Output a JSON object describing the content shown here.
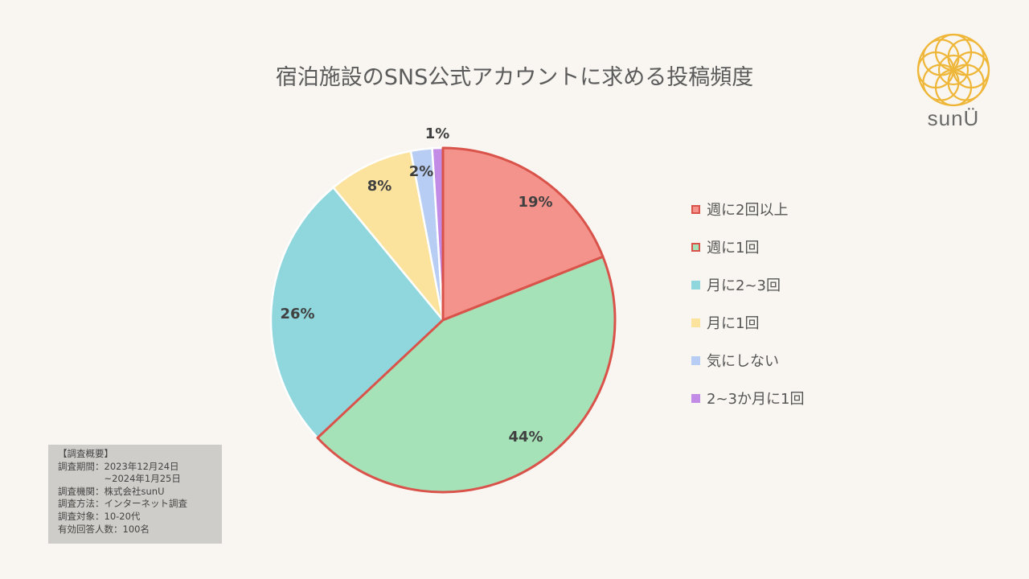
{
  "chart_data": {
    "type": "pie",
    "title": "宿泊施設のSNS公式アカウントに求める投稿頻度",
    "categories": [
      "週に2回以上",
      "週に1回",
      "月に2~3回",
      "月に1回",
      "気にしない",
      "2~3か月に1回"
    ],
    "values": [
      19,
      44,
      26,
      8,
      2,
      1
    ],
    "value_labels": [
      "19%",
      "44%",
      "26%",
      "8%",
      "2%",
      "1%"
    ],
    "colors": [
      "#f4938c",
      "#a6e2b8",
      "#8fd6dd",
      "#fbe39e",
      "#b7cdf3",
      "#c18be6"
    ],
    "highlight_border_color": "#d9534a",
    "highlighted": [
      true,
      true,
      false,
      false,
      false,
      false
    ],
    "legend_position": "right"
  },
  "logo": {
    "text": "sunÜ",
    "color": "#efb73a"
  },
  "summary": {
    "lines": [
      "【調査概要】",
      "調査期間：2023年12月24日",
      "　　　　　~2024年1月25日",
      "調査機関：株式会社sunU",
      "調査方法：インターネット調査",
      "調査対象：10-20代",
      "有効回答人数：100名"
    ]
  }
}
